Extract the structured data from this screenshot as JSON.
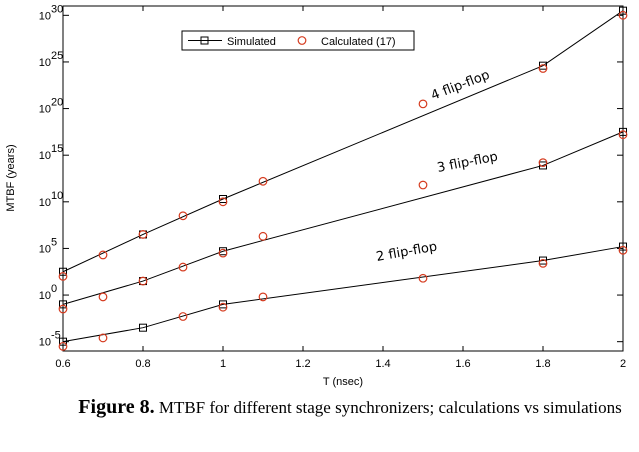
{
  "chart_data": {
    "type": "line",
    "xlabel": "T (nsec)",
    "ylabel": "MTBF (years)",
    "xlim": [
      0.6,
      2.0
    ],
    "ylim_log10": [
      -6,
      31
    ],
    "x_ticks": [
      "0.6",
      "0.8",
      "1",
      "1.2",
      "1.4",
      "1.6",
      "1.8",
      "2"
    ],
    "y_ticks": [
      {
        "exp": -5,
        "base": "10",
        "sup": "-5"
      },
      {
        "exp": 0,
        "base": "10",
        "sup": "0"
      },
      {
        "exp": 5,
        "base": "10",
        "sup": "5"
      },
      {
        "exp": 10,
        "base": "10",
        "sup": "10"
      },
      {
        "exp": 15,
        "base": "10",
        "sup": "15"
      },
      {
        "exp": 20,
        "base": "10",
        "sup": "20"
      },
      {
        "exp": 25,
        "base": "10",
        "sup": "25"
      },
      {
        "exp": 30,
        "base": "10",
        "sup": "30"
      }
    ],
    "legend": {
      "simulated": "Simulated",
      "calculated": "Calculated (17)",
      "position": "top-left"
    },
    "series": [
      {
        "name": "2 flip-flop",
        "label": "2 flip-flop",
        "simulated": {
          "x": [
            0.6,
            0.8,
            1.0,
            1.8,
            2.0
          ],
          "log10_y": [
            -5.0,
            -3.5,
            -1.0,
            3.7,
            5.2
          ]
        },
        "calculated": {
          "x": [
            0.6,
            0.7,
            0.9,
            1.0,
            1.1,
            1.5,
            1.8,
            2.0
          ],
          "log10_y": [
            -5.5,
            -4.6,
            -2.3,
            -1.3,
            -0.2,
            1.8,
            3.4,
            4.8
          ]
        }
      },
      {
        "name": "3 flip-flop",
        "label": "3 flip-flop",
        "simulated": {
          "x": [
            0.6,
            0.8,
            1.0,
            1.8,
            2.0
          ],
          "log10_y": [
            -1.0,
            1.5,
            4.7,
            13.9,
            17.5
          ]
        },
        "calculated": {
          "x": [
            0.6,
            0.7,
            0.8,
            0.9,
            1.0,
            1.1,
            1.5,
            1.8,
            2.0
          ],
          "log10_y": [
            -1.5,
            -0.2,
            1.5,
            3.0,
            4.5,
            6.3,
            11.8,
            14.2,
            17.2
          ]
        }
      },
      {
        "name": "4 flip-flop",
        "label": "4 flip-flop",
        "simulated": {
          "x": [
            0.6,
            0.8,
            1.0,
            1.8,
            2.0
          ],
          "log10_y": [
            2.5,
            6.5,
            10.3,
            24.6,
            30.5
          ]
        },
        "calculated": {
          "x": [
            0.6,
            0.7,
            0.8,
            0.9,
            1.0,
            1.1,
            1.5,
            1.8,
            2.0
          ],
          "log10_y": [
            2.0,
            4.3,
            6.5,
            8.5,
            10.0,
            12.2,
            20.5,
            24.3,
            30.0
          ]
        }
      }
    ]
  },
  "caption": {
    "label": "Figure 8.",
    "text": "MTBF for different stage synchronizers; calculations vs simulations"
  }
}
